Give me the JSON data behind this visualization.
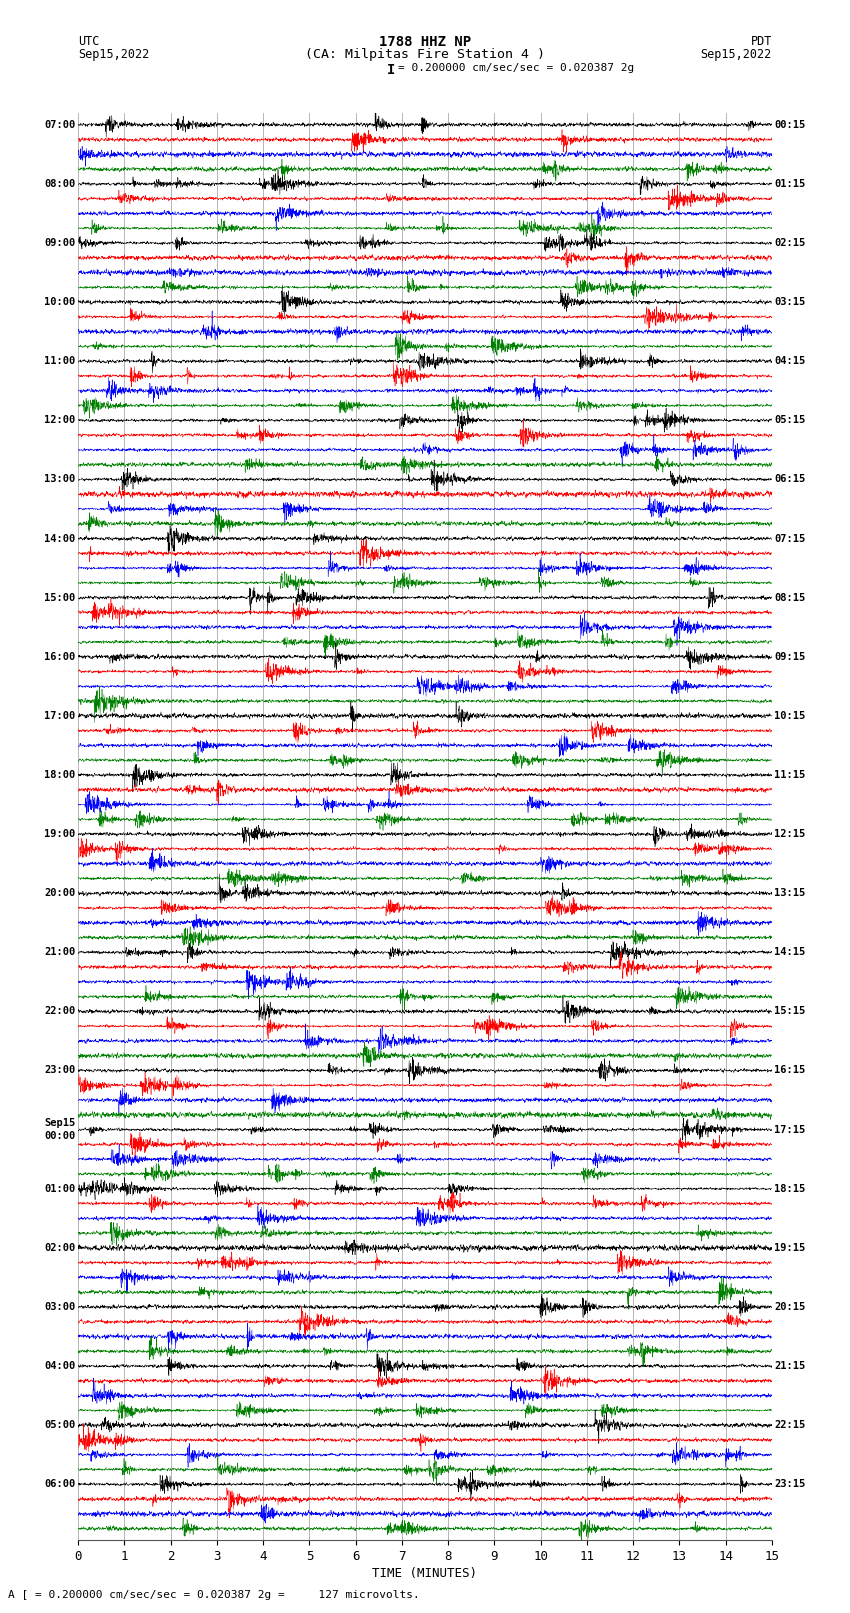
{
  "title_line1": "1788 HHZ NP",
  "title_line2": "(CA: Milpitas Fire Station 4 )",
  "scale_text": "= 0.200000 cm/sec/sec = 0.020387 2g",
  "utc_label": "UTC",
  "utc_date": "Sep15,2022",
  "pdt_label": "PDT",
  "pdt_date": "Sep15,2022",
  "footer_text": "A [ = 0.200000 cm/sec/sec = 0.020387 2g =     127 microvolts.",
  "xlabel": "TIME (MINUTES)",
  "left_labels": [
    "07:00",
    "08:00",
    "09:00",
    "10:00",
    "11:00",
    "12:00",
    "13:00",
    "14:00",
    "15:00",
    "16:00",
    "17:00",
    "18:00",
    "19:00",
    "20:00",
    "21:00",
    "22:00",
    "23:00",
    "00:00",
    "01:00",
    "02:00",
    "03:00",
    "04:00",
    "05:00",
    "06:00"
  ],
  "right_labels": [
    "00:15",
    "01:15",
    "02:15",
    "03:15",
    "04:15",
    "05:15",
    "06:15",
    "07:15",
    "08:15",
    "09:15",
    "10:15",
    "11:15",
    "12:15",
    "13:15",
    "14:15",
    "15:15",
    "16:15",
    "17:15",
    "18:15",
    "19:15",
    "20:15",
    "21:15",
    "22:15",
    "23:15"
  ],
  "colors": [
    "black",
    "red",
    "blue",
    "green"
  ],
  "n_traces": 96,
  "x_min": 0,
  "x_max": 15,
  "bg_color": "white",
  "grid_color": "#aaaaaa",
  "trace_amplitude": 0.42,
  "noise_seed": 42
}
